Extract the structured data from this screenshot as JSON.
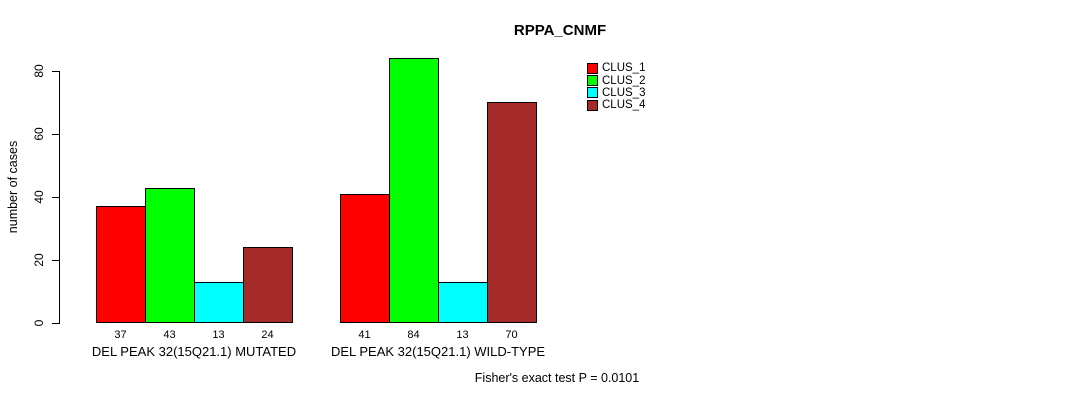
{
  "chart_data": {
    "type": "bar",
    "title": "RPPA_CNMF",
    "xlabel": "",
    "ylabel": "number of cases",
    "yticks": [
      0,
      20,
      40,
      60,
      80
    ],
    "ylim": [
      0,
      88
    ],
    "grid": false,
    "legend_position": "top-right",
    "categories": [
      "DEL PEAK 32(15Q21.1) MUTATED",
      "DEL PEAK 32(15Q21.1) WILD-TYPE"
    ],
    "series": [
      {
        "name": "CLUS_1",
        "color": "#FF0000",
        "values": [
          37,
          41
        ]
      },
      {
        "name": "CLUS_2",
        "color": "#00FF00",
        "values": [
          43,
          84
        ]
      },
      {
        "name": "CLUS_3",
        "color": "#00FFFF",
        "values": [
          13,
          13
        ]
      },
      {
        "name": "CLUS_4",
        "color": "#A52A2A",
        "values": [
          24,
          70
        ]
      }
    ],
    "bar_value_labels": [
      [
        37,
        43,
        13,
        24
      ],
      [
        41,
        84,
        13,
        70
      ]
    ],
    "annotation": "Fisher's exact test P = 0.0101"
  }
}
